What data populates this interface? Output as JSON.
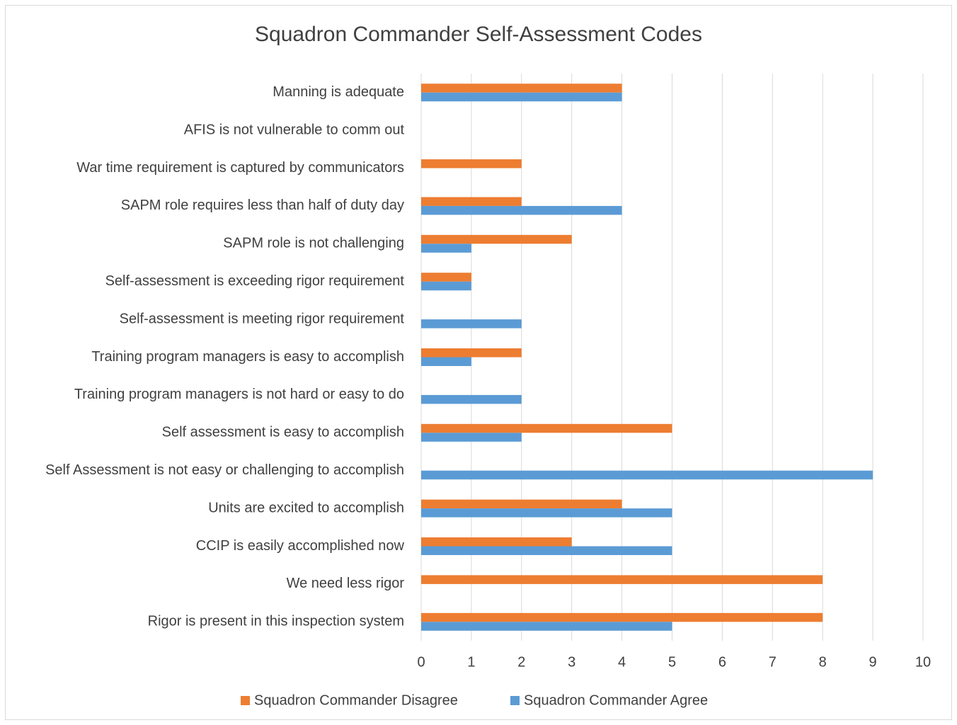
{
  "chart_data": {
    "type": "hbar",
    "title": "Squadron Commander Self-Assessment Codes",
    "categories": [
      "Manning is adequate",
      "AFIS is not vulnerable to comm out",
      "War time requirement is captured by communicators",
      "SAPM role requires less than half of duty day",
      "SAPM role is not challenging",
      "Self-assessment is exceeding rigor requirement",
      "Self-assessment is meeting rigor requirement",
      "Training program managers is easy to accomplish",
      "Training program managers is not hard or easy to do",
      "Self assessment is easy to accomplish",
      "Self Assessment is not easy or challenging to accomplish",
      "Units are excited to accomplish",
      "CCIP is easily accomplished now",
      "We need less rigor",
      "Rigor is present in this inspection system"
    ],
    "series": [
      {
        "name": "Squadron Commander Disagree",
        "color": "#ed7d31",
        "values": [
          4,
          0,
          2,
          2,
          3,
          1,
          0,
          2,
          0,
          5,
          0,
          4,
          3,
          8,
          8
        ]
      },
      {
        "name": "Squadron Commander Agree",
        "color": "#5b9bd5",
        "values": [
          4,
          0,
          0,
          4,
          1,
          1,
          2,
          1,
          2,
          2,
          9,
          5,
          5,
          0,
          5
        ]
      }
    ],
    "xlim": [
      0,
      10
    ],
    "xticks": [
      0,
      1,
      2,
      3,
      4,
      5,
      6,
      7,
      8,
      9,
      10
    ],
    "grid": true,
    "legend": "bottom"
  }
}
